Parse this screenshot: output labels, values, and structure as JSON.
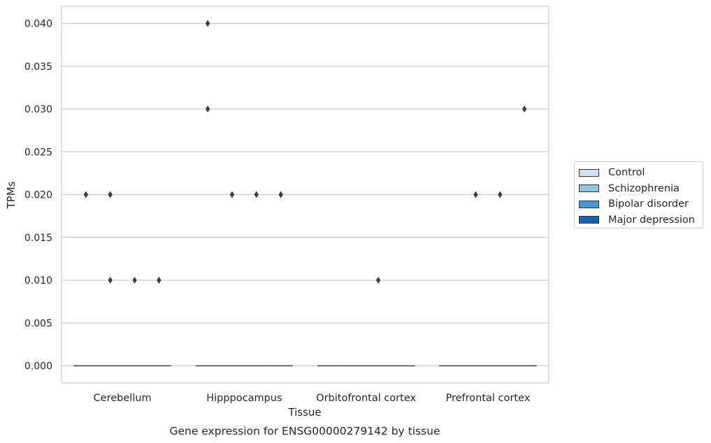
{
  "chart_data": {
    "type": "box",
    "title": "Gene expression for ENSG00000279142 by tissue",
    "xlabel": "Tissue",
    "ylabel": "TPMs",
    "ylim": [
      -0.002,
      0.042
    ],
    "yticks": [
      "0.000",
      "0.005",
      "0.010",
      "0.015",
      "0.020",
      "0.025",
      "0.030",
      "0.035",
      "0.040"
    ],
    "categories": [
      "Cerebellum",
      "Hipppocampus",
      "Orbitofrontal cortex",
      "Prefrontal cortex"
    ],
    "grid": "horizontal",
    "legend_position": "right",
    "series": [
      {
        "name": "Control",
        "color": "#d0e1f2",
        "median": [
          0,
          0,
          0,
          0
        ],
        "outliers": [
          [
            0.02
          ],
          [
            0.04,
            0.03
          ],
          [],
          []
        ]
      },
      {
        "name": "Schizophrenia",
        "color": "#94c4df",
        "median": [
          0,
          0,
          0,
          0
        ],
        "outliers": [
          [
            0.02,
            0.01
          ],
          [
            0.02
          ],
          [],
          [
            0.02
          ]
        ]
      },
      {
        "name": "Bipolar disorder",
        "color": "#4a98c9",
        "median": [
          0,
          0,
          0,
          0
        ],
        "outliers": [
          [
            0.01
          ],
          [
            0.02
          ],
          [
            0.01
          ],
          [
            0.02
          ]
        ]
      },
      {
        "name": "Major depression",
        "color": "#1764ab",
        "median": [
          0,
          0,
          0,
          0
        ],
        "outliers": [
          [
            0.01
          ],
          [
            0.02
          ],
          [],
          [
            0.03
          ]
        ]
      }
    ]
  }
}
